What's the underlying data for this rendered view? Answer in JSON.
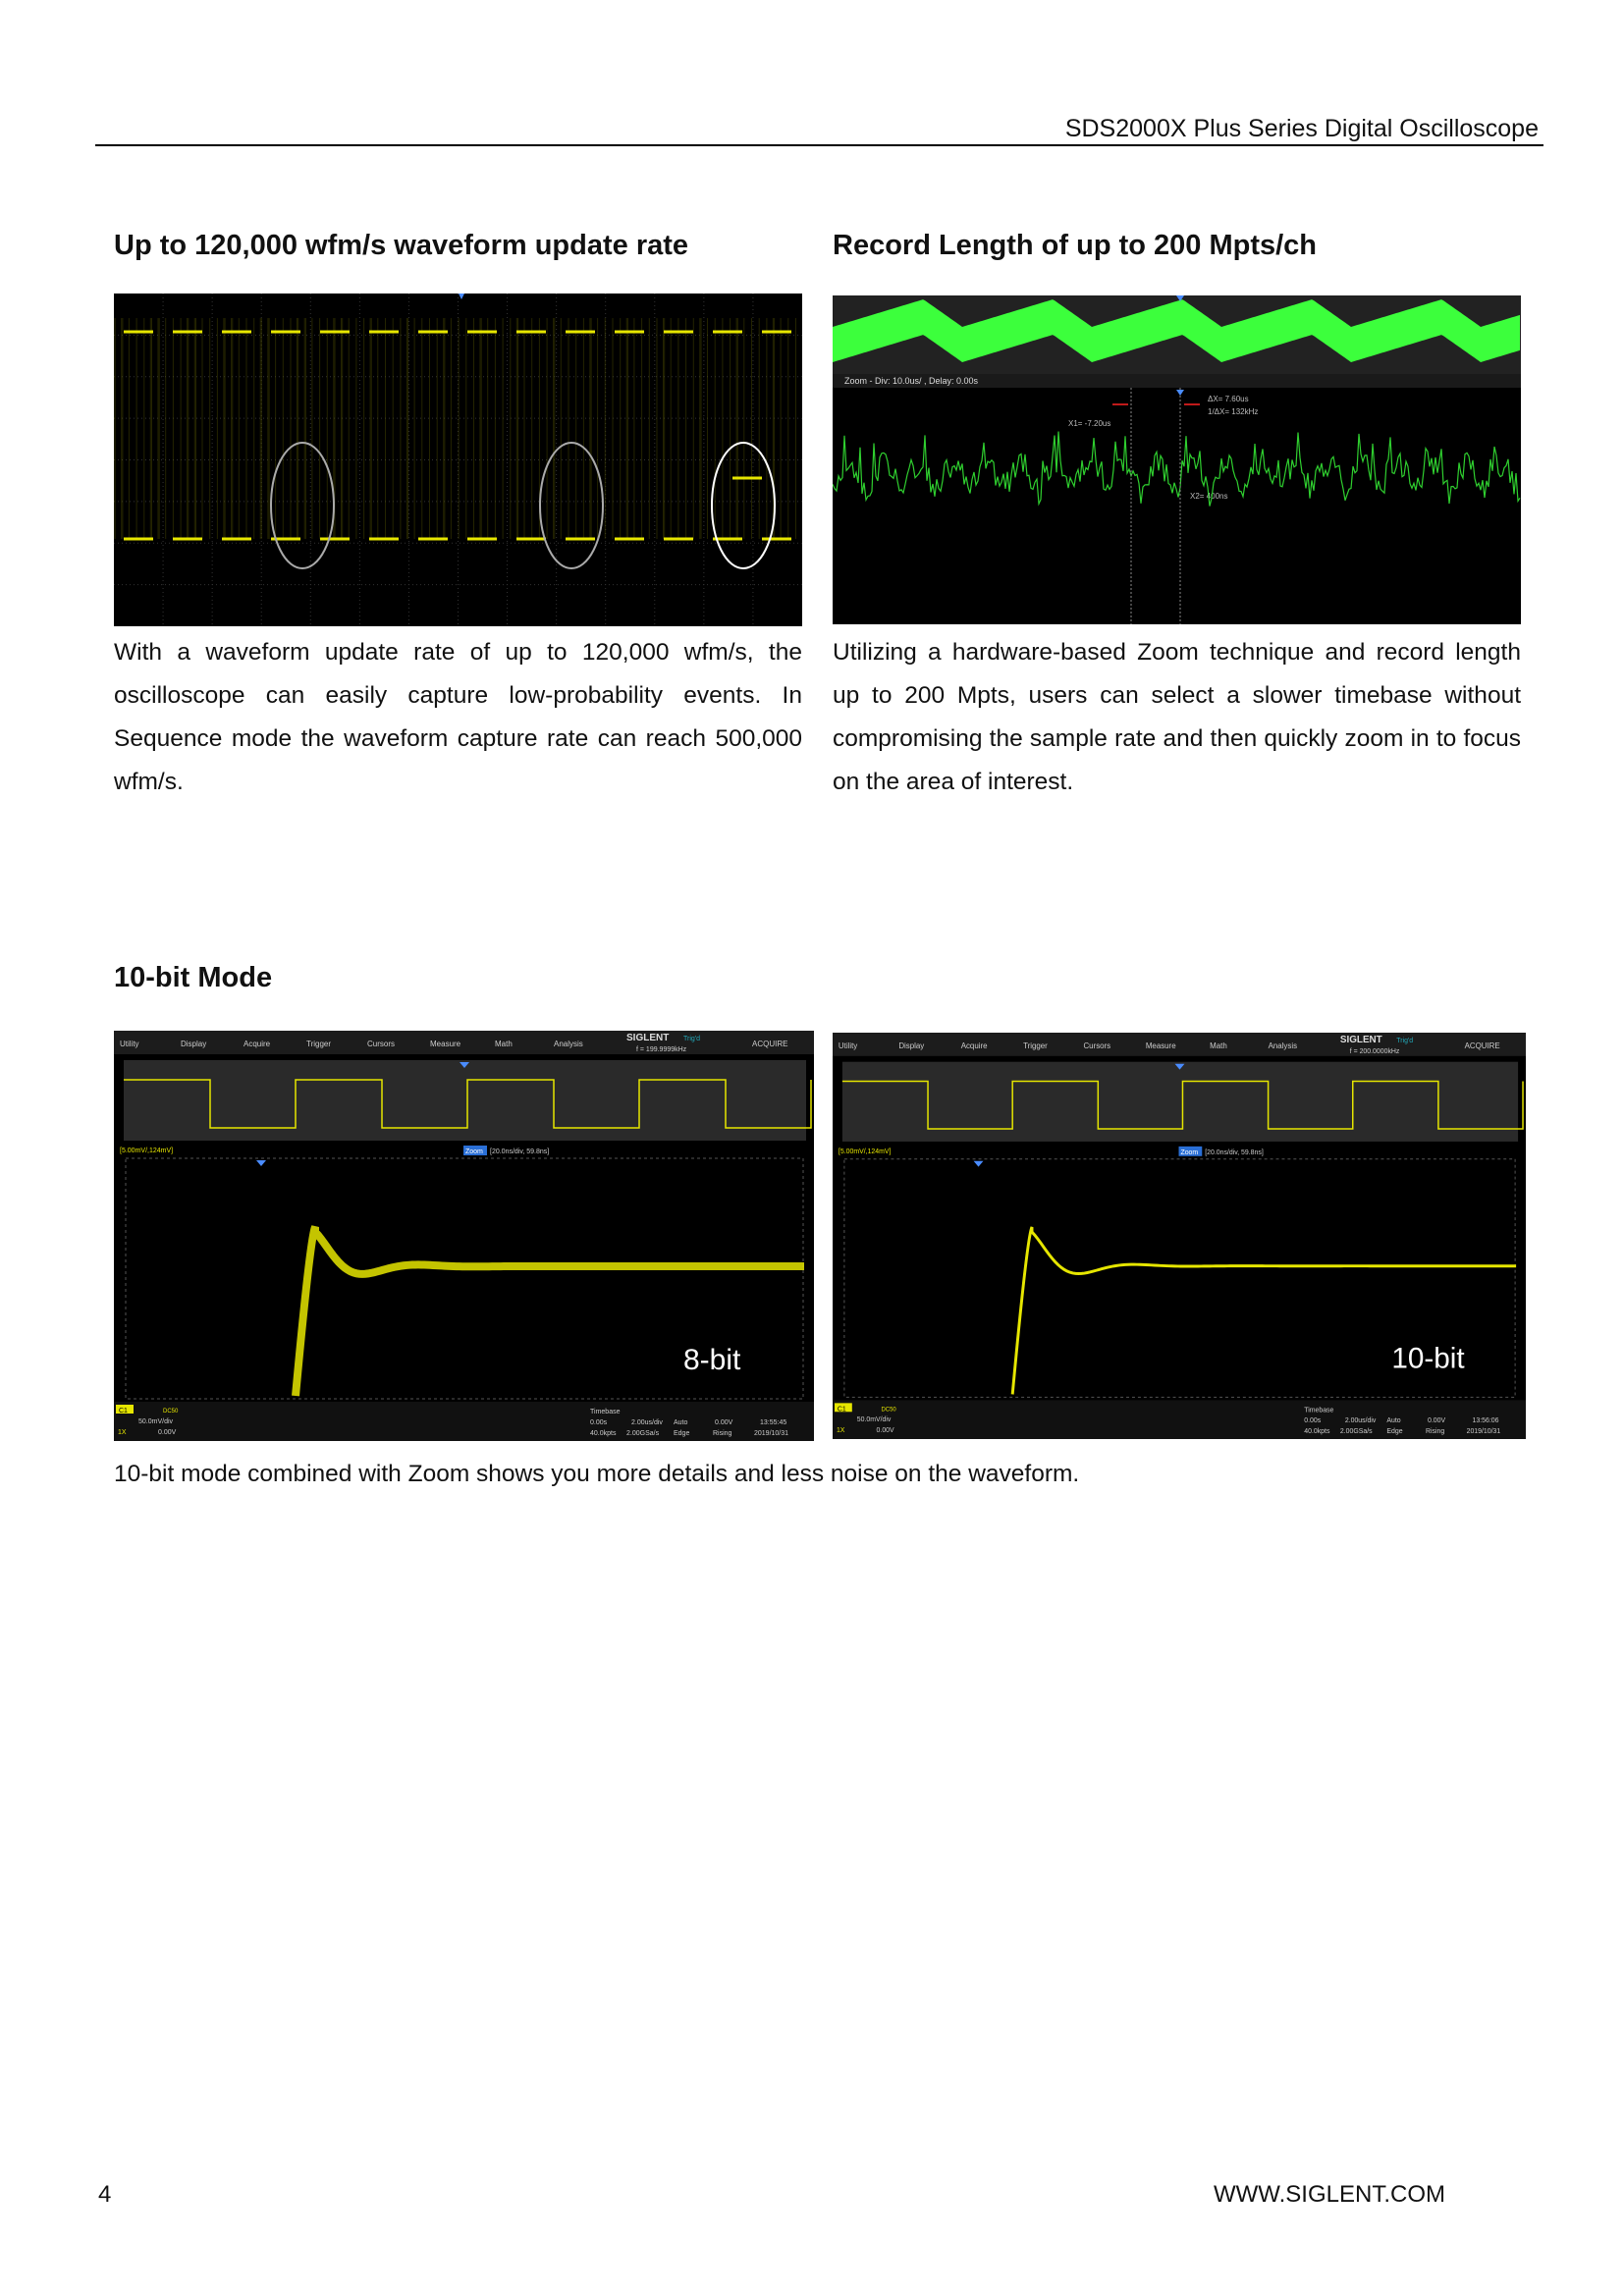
{
  "header": {
    "title": "SDS2000X Plus Series Digital Oscilloscope"
  },
  "sections": {
    "update_rate": {
      "title": "Up to 120,000 wfm/s waveform update rate",
      "text": "With a waveform update rate of up to 120,000 wfm/s, the oscilloscope can easily capture low-probability events. In Sequence mode the waveform capture rate can reach 500,000 wfm/s."
    },
    "record_length": {
      "title": "Record Length of up to 200 Mpts/ch",
      "text": "Utilizing a hardware-based Zoom technique and record length up to 200 Mpts, users can select a slower timebase without compromising the sample rate and then quickly zoom in to focus on the area of interest.",
      "screen": {
        "zoom_label": "Zoom - Div: 10.0us/ ,  Delay: 0.00s",
        "dx": "ΔX= 7.60us",
        "inv_dx": "1/ΔX= 132kHz",
        "x1": "X1= -7.20us",
        "x2": "X2= 400ns"
      }
    },
    "ten_bit": {
      "title": "10-bit Mode",
      "caption": "10-bit mode combined with Zoom shows you more details and less noise on the waveform.",
      "menu": [
        "Utility",
        "Display",
        "Acquire",
        "Trigger",
        "Cursors",
        "Measure",
        "Math",
        "Analysis"
      ],
      "brand": "SIGLENT",
      "trig_status": "Trig'd",
      "acquire": "ACQUIRE",
      "scale_label": "[5.00mV/,124mV]",
      "zoom_badge": "Zoom",
      "zoom_info": "[20.0ns/div, 59.8ns]",
      "screens": [
        {
          "freq": "f = 199.9999kHz",
          "mode_label": "8-bit",
          "time": "13:55:45",
          "date": "2019/10/31"
        },
        {
          "freq": "f = 200.0000kHz",
          "mode_label": "10-bit",
          "time": "13:56:06",
          "date": "2019/10/31"
        }
      ],
      "channel": {
        "name": "C1",
        "coupling": "DC50",
        "scale": "50.0mV/div",
        "probe": "1X",
        "offset": "0.00V"
      },
      "timebase": {
        "label": "Timebase",
        "delay": "0.00s",
        "scale": "2.00us/div",
        "points": "40.0kpts",
        "rate": "2.00GSa/s"
      },
      "trigger": {
        "mode": "Auto",
        "level": "0.00V",
        "type": "Edge",
        "slope": "Rising"
      },
      "colors": {
        "ch1": "#e6e600",
        "accent": "#3a7bd5",
        "trace_green": "#3cff3c"
      }
    }
  },
  "footer": {
    "page_number": "4",
    "url": "WWW.SIGLENT.COM"
  }
}
